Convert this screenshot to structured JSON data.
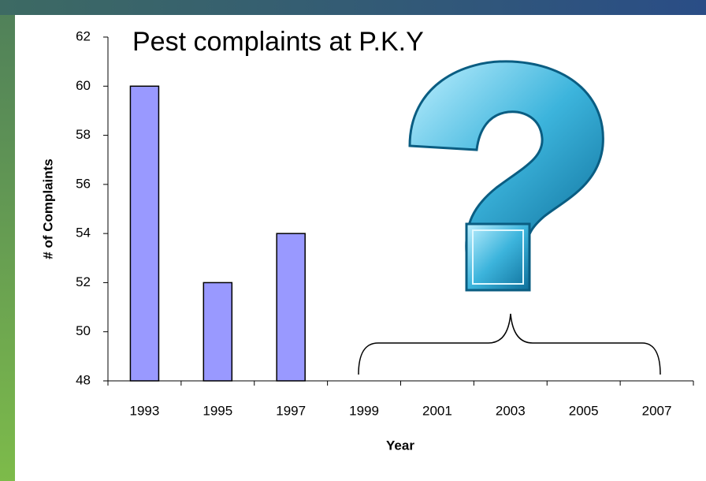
{
  "chart_data": {
    "type": "bar",
    "title": "Pest complaints at P.K.Y",
    "x_label": "Year",
    "y_label": "# of Complaints",
    "categories": [
      "1993",
      "1995",
      "1997",
      "1999",
      "2001",
      "2003",
      "2005",
      "2007"
    ],
    "values": [
      60,
      52,
      54,
      null,
      null,
      null,
      null,
      null
    ],
    "color": "#9999ff",
    "ylim": [
      48,
      62
    ],
    "yticks": [
      48,
      50,
      52,
      54,
      56,
      58,
      60,
      62
    ],
    "grid": false
  }
}
